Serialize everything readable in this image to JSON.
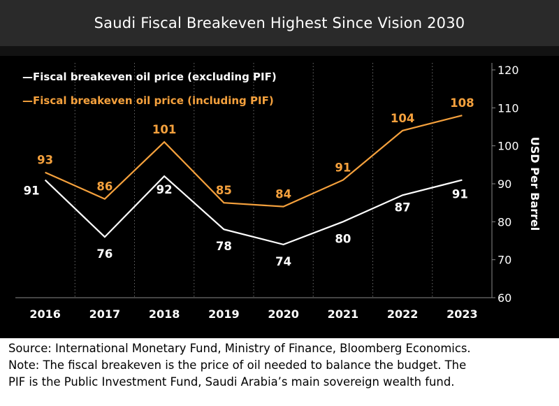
{
  "header": {
    "title": "Saudi Fiscal Breakeven Highest Since Vision 2030"
  },
  "chart_data": {
    "type": "line",
    "title": "Saudi Fiscal Breakeven Highest Since Vision 2030",
    "x": [
      "2016",
      "2017",
      "2018",
      "2019",
      "2020",
      "2021",
      "2022",
      "2023"
    ],
    "ylabel": "USD Per Barrel",
    "ylim": [
      60,
      120
    ],
    "yticks": [
      "60",
      "70",
      "80",
      "90",
      "100",
      "110",
      "120"
    ],
    "y_axis_side": "right",
    "legend_position": "top-left",
    "series": [
      {
        "name": "Fiscal breakeven oil price (excluding PIF)",
        "legend_label": "—Fiscal breakeven oil price (excluding PIF)",
        "color": "#ffffff",
        "values": [
          91,
          76,
          92,
          78,
          74,
          80,
          87,
          91
        ],
        "labels": [
          "91",
          "76",
          "92",
          "78",
          "74",
          "80",
          "87",
          "91"
        ]
      },
      {
        "name": "Fiscal breakeven oil price (including PIF)",
        "legend_label": "—Fiscal breakeven oil price (including PIF)",
        "color": "#f5a13d",
        "values": [
          93,
          86,
          101,
          85,
          84,
          91,
          104,
          108
        ],
        "labels": [
          "93",
          "86",
          "101",
          "85",
          "84",
          "91",
          "104",
          "108"
        ]
      }
    ]
  },
  "footer": {
    "lines": [
      "Source: International Monetary Fund, Ministry of Finance, Bloomberg Economics.",
      "Note: The fiscal breakeven is the price of oil needed to balance the budget. The",
      "PIF is the Public Investment Fund, Saudi Arabia’s main sovereign wealth fund."
    ]
  }
}
